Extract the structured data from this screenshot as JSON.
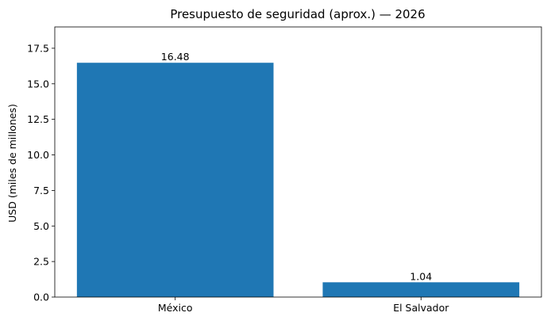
{
  "chart_data": {
    "type": "bar",
    "title": "Presupuesto de seguridad (aprox.) — 2026",
    "xlabel": "",
    "ylabel": "USD (miles de millones)",
    "categories": [
      "México",
      "El Salvador"
    ],
    "values": [
      16.48,
      1.04
    ],
    "value_labels": [
      "16.48",
      "1.04"
    ],
    "ylim": [
      0,
      19
    ],
    "yticks": [
      0.0,
      2.5,
      5.0,
      7.5,
      10.0,
      12.5,
      15.0,
      17.5
    ],
    "ytick_labels": [
      "0.0",
      "2.5",
      "5.0",
      "7.5",
      "10.0",
      "12.5",
      "15.0",
      "17.5"
    ],
    "grid": false,
    "legend": "none",
    "bar_color": "#1f77b4"
  }
}
